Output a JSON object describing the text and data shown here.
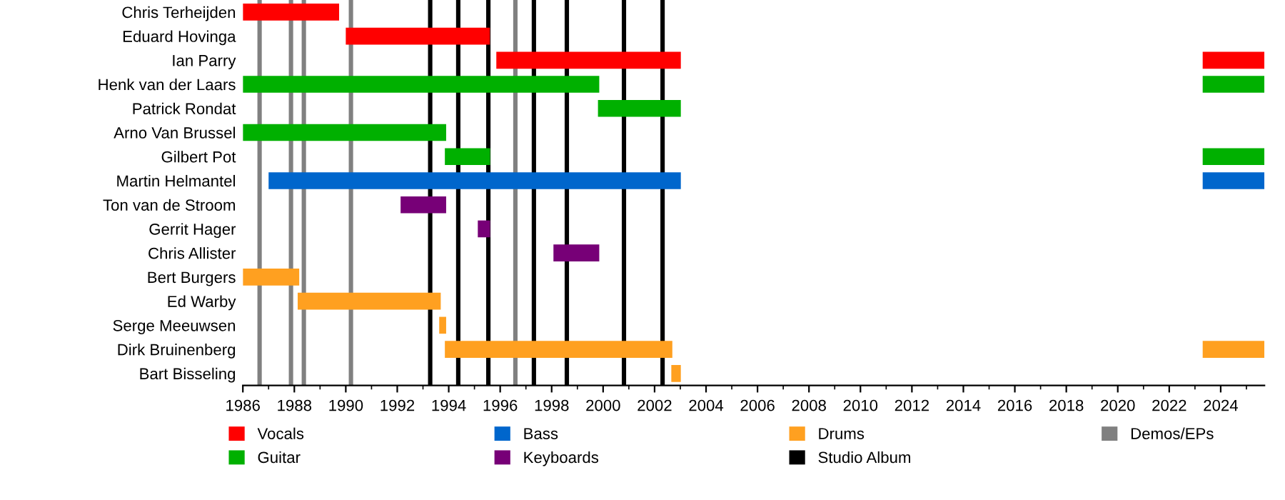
{
  "chart_data": {
    "type": "bar",
    "orientation": "horizontal",
    "legend": "bottom",
    "grid": false,
    "categories": [
      "Chris Terheijden",
      "Eduard Hovinga",
      "Ian Parry",
      "Henk van der Laars",
      "Patrick Rondat",
      "Arno Van Brussel",
      "Gilbert Pot",
      "Martin Helmantel",
      "Ton van de Stroom",
      "Gerrit Hager",
      "Chris Allister",
      "Bert Burgers",
      "Ed Warby",
      "Serge Meeuwsen",
      "Dirk Bruinenberg",
      "Bart Bisseling"
    ],
    "xlim": [
      1986,
      2025.7
    ],
    "xticks": [
      1986,
      1988,
      1990,
      1992,
      1994,
      1996,
      1998,
      2000,
      2002,
      2004,
      2006,
      2008,
      2010,
      2012,
      2014,
      2016,
      2018,
      2020,
      2022,
      2024
    ],
    "series": [
      {
        "name": "Vocals",
        "color": "#ff0000",
        "base": [
          1986,
          1990.0,
          1995.85,
          null,
          null,
          null,
          null,
          null,
          null,
          null,
          null,
          null,
          null,
          null,
          null,
          null
        ],
        "values": [
          3.74,
          5.6,
          7.17,
          null,
          null,
          null,
          null,
          null,
          null,
          null,
          null,
          null,
          null,
          null,
          null,
          null
        ]
      },
      {
        "name": "Guitar",
        "color": "#00b000",
        "base": [
          null,
          null,
          null,
          1986,
          1999.8,
          1986,
          1993.85,
          null,
          null,
          null,
          null,
          null,
          null,
          null,
          null,
          null
        ],
        "values": [
          null,
          null,
          null,
          13.85,
          3.22,
          7.9,
          1.76,
          null,
          null,
          null,
          null,
          null,
          null,
          null,
          null,
          null
        ]
      },
      {
        "name": "Bass",
        "color": "#0066cc",
        "base": [
          null,
          null,
          null,
          null,
          null,
          null,
          null,
          1987.0,
          null,
          null,
          null,
          null,
          null,
          null,
          null,
          null
        ],
        "values": [
          null,
          null,
          null,
          null,
          null,
          null,
          null,
          16.02,
          null,
          null,
          null,
          null,
          null,
          null,
          null,
          null
        ]
      },
      {
        "name": "Keyboards",
        "color": "#770077",
        "base": [
          null,
          null,
          null,
          null,
          null,
          null,
          null,
          null,
          1992.13,
          1995.13,
          1998.07,
          null,
          null,
          null,
          null,
          null
        ],
        "values": [
          null,
          null,
          null,
          null,
          null,
          null,
          null,
          null,
          1.77,
          0.48,
          1.78,
          null,
          null,
          null,
          null,
          null
        ]
      },
      {
        "name": "Drums",
        "color": "#ffa020",
        "base": [
          null,
          null,
          null,
          null,
          null,
          null,
          null,
          null,
          null,
          null,
          null,
          1986,
          1988.13,
          1993.63,
          1993.85,
          2002.65
        ],
        "values": [
          null,
          null,
          null,
          null,
          null,
          null,
          null,
          null,
          null,
          null,
          null,
          2.19,
          5.56,
          0.27,
          8.84,
          0.37
        ]
      },
      {
        "color": "#ff0000",
        "base": [
          null,
          null,
          2023.3,
          null,
          null,
          null,
          null,
          null,
          null,
          null,
          null,
          null,
          null,
          null,
          null,
          null
        ],
        "values": [
          null,
          null,
          2.4,
          null,
          null,
          null,
          null,
          null,
          null,
          null,
          null,
          null,
          null,
          null,
          null,
          null
        ]
      },
      {
        "color": "#00b000",
        "base": [
          null,
          null,
          null,
          2023.3,
          null,
          null,
          2023.3,
          null,
          null,
          null,
          null,
          null,
          null,
          null,
          null,
          null
        ],
        "values": [
          null,
          null,
          null,
          2.4,
          null,
          null,
          2.4,
          null,
          null,
          null,
          null,
          null,
          null,
          null,
          null,
          null
        ]
      },
      {
        "color": "#0066cc",
        "base": [
          null,
          null,
          null,
          null,
          null,
          null,
          null,
          2023.3,
          null,
          null,
          null,
          null,
          null,
          null,
          null,
          null
        ],
        "values": [
          null,
          null,
          null,
          null,
          null,
          null,
          null,
          2.4,
          null,
          null,
          null,
          null,
          null,
          null,
          null,
          null
        ]
      },
      {
        "color": "#ffa020",
        "base": [
          null,
          null,
          null,
          null,
          null,
          null,
          null,
          null,
          null,
          null,
          null,
          null,
          null,
          null,
          2023.3,
          null
        ],
        "values": [
          null,
          null,
          null,
          null,
          null,
          null,
          null,
          null,
          null,
          null,
          null,
          null,
          null,
          null,
          2.4,
          null
        ]
      }
    ],
    "ref_lines": [
      {
        "axis": "x",
        "value": 1993.28,
        "label": "Studio Album",
        "color": "#000000"
      },
      {
        "axis": "x",
        "value": 1994.37,
        "color": "#000000"
      },
      {
        "axis": "x",
        "value": 1995.54,
        "color": "#000000"
      },
      {
        "axis": "x",
        "value": 1997.31,
        "color": "#000000"
      },
      {
        "axis": "x",
        "value": 1998.59,
        "color": "#000000"
      },
      {
        "axis": "x",
        "value": 2000.81,
        "color": "#000000"
      },
      {
        "axis": "x",
        "value": 2002.31,
        "color": "#000000"
      },
      {
        "axis": "x",
        "value": 1986.65,
        "label": "Demos/EPs",
        "color": "#808080"
      },
      {
        "axis": "x",
        "value": 1987.87,
        "color": "#808080"
      },
      {
        "axis": "x",
        "value": 1988.37,
        "color": "#808080"
      },
      {
        "axis": "x",
        "value": 1990.2,
        "color": "#808080"
      },
      {
        "axis": "x",
        "value": 1996.59,
        "color": "#808080"
      }
    ]
  }
}
